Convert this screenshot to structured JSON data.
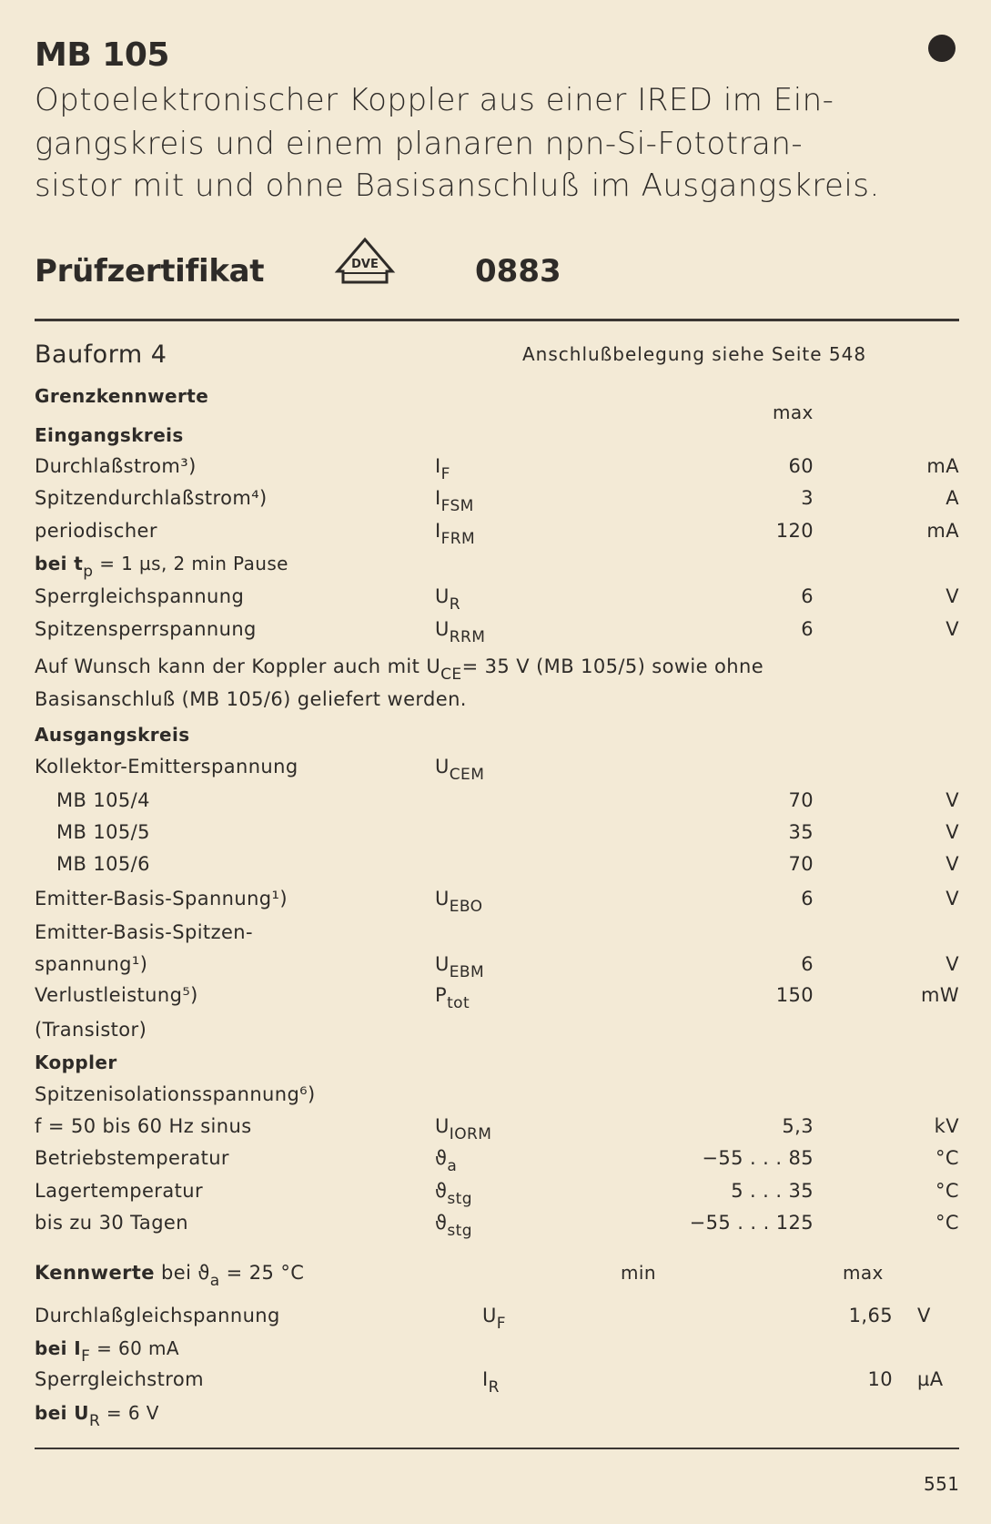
{
  "title": "MB 105",
  "intro_lines": [
    "Optoelektronischer Koppler aus einer IRED im Ein-",
    "gangskreis und einem planaren npn-Si-Fototran-",
    "sistor mit und ohne Basisanschluß im Ausgangskreis."
  ],
  "certificate": {
    "label": "Prüfzertifikat",
    "logo_text": "VDE",
    "number": "0883"
  },
  "bauform": "Bauform 4",
  "anschluss": "Anschlußbelegung siehe Seite 548",
  "grenz_heading": "Grenzkennwerte",
  "max_header": "max",
  "limits": [
    {
      "type": "heading",
      "label": "Eingangskreis"
    },
    {
      "label": "Durchlaßstrom³)",
      "sym": "I",
      "sub": "F",
      "value": "60",
      "unit": "mA"
    },
    {
      "label": "Spitzendurchlaßstrom⁴)",
      "sym": "I",
      "sub": "FSM",
      "value": "3",
      "unit": "A"
    },
    {
      "label": "periodischer",
      "sym": "I",
      "sub": "FRM",
      "value": "120",
      "unit": "mA"
    },
    {
      "type": "cond",
      "label": "bei t",
      "label_sub": "p",
      "label_rest": " = 1 µs, 2 min Pause"
    },
    {
      "label": "Sperrgleichspannung",
      "sym": "U",
      "sub": "R",
      "value": "6",
      "unit": "V"
    },
    {
      "label": "Spitzensperrspannung",
      "sym": "U",
      "sub": "RRM",
      "value": "6",
      "unit": "V"
    },
    {
      "type": "note",
      "label": "Auf Wunsch kann der Koppler auch mit U",
      "label_sub": "CE",
      "label_rest": "= 35 V (MB 105/5) sowie ohne"
    },
    {
      "type": "note",
      "label": "Basisanschluß (MB 105/6) geliefert werden."
    },
    {
      "type": "heading",
      "label": "Ausgangskreis"
    },
    {
      "label": "Kollektor-Emitterspannung",
      "sym": "U",
      "sub": "CEM"
    },
    {
      "type": "indent",
      "label": "MB 105/4",
      "value": "70",
      "unit": "V"
    },
    {
      "type": "indent",
      "label": "MB 105/5",
      "value": "35",
      "unit": "V"
    },
    {
      "type": "indent",
      "label": "MB 105/6",
      "value": "70",
      "unit": "V"
    },
    {
      "label": "Emitter-Basis-Spannung¹)",
      "sym": "U",
      "sub": "EBO",
      "value": "6",
      "unit": "V"
    },
    {
      "label": "Emitter-Basis-Spitzen-"
    },
    {
      "label": "spannung¹)",
      "sym": "U",
      "sub": "EBM",
      "value": "6",
      "unit": "V"
    },
    {
      "label": "Verlustleistung⁵)",
      "sym": "P",
      "sub": "tot",
      "value": "150",
      "unit": "mW"
    },
    {
      "label": "(Transistor)"
    },
    {
      "type": "heading",
      "label": "Koppler"
    },
    {
      "label": "Spitzenisolationsspannung⁶)"
    },
    {
      "label": "f = 50 bis 60 Hz sinus",
      "sym": "U",
      "sub": "IORM",
      "value": "5,3",
      "unit": "kV"
    },
    {
      "label": "Betriebstemperatur",
      "sym": "ϑ",
      "sub": "a",
      "value": "−55 . . . 85",
      "unit": "°C"
    },
    {
      "label": "Lagertemperatur",
      "sym": "ϑ",
      "sub": "stg",
      "value": "5 . . . 35",
      "unit": "°C"
    },
    {
      "label": "bis zu 30 Tagen",
      "sym": "ϑ",
      "sub": "stg",
      "value": "−55 . . . 125",
      "unit": "°C"
    }
  ],
  "kennwerte": {
    "heading_bold": "Kennwerte",
    "heading_rest": " bei ϑ",
    "heading_sub": "a",
    "heading_tail": " = 25 °C",
    "min_header": "min",
    "max_header": "max",
    "rows": [
      {
        "label": "Durchlaßgleichspannung",
        "sym": "U",
        "sub": "F",
        "max": "1,65",
        "unit": "V"
      },
      {
        "type": "cond",
        "label": "bei I",
        "label_sub": "F",
        "label_rest": " = 60 mA"
      },
      {
        "label": "Sperrgleichstrom",
        "sym": "I",
        "sub": "R",
        "max": "10",
        "unit": "µA"
      },
      {
        "type": "cond",
        "label": "bei U",
        "label_sub": "R",
        "label_rest": " = 6 V"
      }
    ]
  },
  "page_number": "551"
}
